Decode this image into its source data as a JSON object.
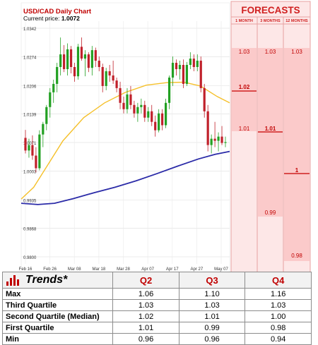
{
  "chart_data": [
    {
      "type": "candlestick",
      "title": "USD/CAD Daily Chart",
      "current_price_label": "Current price:",
      "current_price": "1.0072",
      "y_ticks": [
        "1.0342",
        "1.0274",
        "1.0206",
        "1.0139",
        "1.0071",
        "1.0003",
        "0.9935",
        "0.9868",
        "0.9800"
      ],
      "ylim": [
        0.98,
        1.0342
      ],
      "x_ticks": [
        "Feb 16",
        "Feb 26",
        "Mar 08",
        "Mar 18",
        "Mar 28",
        "Apr 07",
        "Apr 17",
        "Apr 27",
        "May 07"
      ],
      "candles": [
        [
          1.0082,
          1.0101,
          1.0045,
          1.0052
        ],
        [
          1.0052,
          1.008,
          1.0035,
          1.0065
        ],
        [
          1.0065,
          1.0088,
          1.003,
          1.004
        ],
        [
          1.004,
          1.006,
          1.0,
          1.001
        ],
        [
          1.001,
          1.01,
          1.0005,
          1.009
        ],
        [
          1.009,
          1.012,
          1.006,
          1.0115
        ],
        [
          1.0115,
          1.016,
          1.01,
          1.0155
        ],
        [
          1.0155,
          1.02,
          1.013,
          1.019
        ],
        [
          1.019,
          1.022,
          1.0165,
          1.021
        ],
        [
          1.021,
          1.026,
          1.019,
          1.025
        ],
        [
          1.025,
          1.032,
          1.023,
          1.028
        ],
        [
          1.028,
          1.0302,
          1.0238,
          1.0245
        ],
        [
          1.0245,
          1.0306,
          1.023,
          1.0292
        ],
        [
          1.0292,
          1.03,
          1.0235,
          1.025
        ],
        [
          1.025,
          1.026,
          1.0215,
          1.0228
        ],
        [
          1.0228,
          1.0305,
          1.022,
          1.0298
        ],
        [
          1.0298,
          1.032,
          1.0265,
          1.027
        ],
        [
          1.027,
          1.029,
          1.0228,
          1.028
        ],
        [
          1.028,
          1.0285,
          1.0238,
          1.0248
        ],
        [
          1.0248,
          1.03,
          1.023,
          1.029
        ],
        [
          1.029,
          1.0296,
          1.025,
          1.0265
        ],
        [
          1.0265,
          1.0275,
          1.024,
          1.025
        ],
        [
          1.025,
          1.0258,
          1.019,
          1.0205
        ],
        [
          1.0205,
          1.0248,
          1.0195,
          1.024
        ],
        [
          1.024,
          1.0255,
          1.0215,
          1.023
        ],
        [
          1.023,
          1.0265,
          1.021,
          1.0218
        ],
        [
          1.0218,
          1.0225,
          1.019,
          1.02
        ],
        [
          1.02,
          1.0215,
          1.015,
          1.0165
        ],
        [
          1.0165,
          1.018,
          1.014,
          1.015
        ],
        [
          1.015,
          1.02,
          1.014,
          1.0185
        ],
        [
          1.0185,
          1.0205,
          1.015,
          1.016
        ],
        [
          1.016,
          1.017,
          1.013,
          1.014
        ],
        [
          1.014,
          1.0165,
          1.012,
          1.0155
        ],
        [
          1.0155,
          1.0175,
          1.014,
          1.016
        ],
        [
          1.016,
          1.017,
          1.012,
          1.013
        ],
        [
          1.013,
          1.0155,
          1.012,
          1.0145
        ],
        [
          1.0145,
          1.016,
          1.011,
          1.012
        ],
        [
          1.012,
          1.0135,
          1.0085,
          1.01
        ],
        [
          1.01,
          1.015,
          1.0095,
          1.014
        ],
        [
          1.014,
          1.015,
          1.01,
          1.0112
        ],
        [
          1.0112,
          1.0175,
          1.0105,
          1.0165
        ],
        [
          1.0165,
          1.023,
          1.015,
          1.0225
        ],
        [
          1.0225,
          1.0275,
          1.0205,
          1.026
        ],
        [
          1.026,
          1.0268,
          1.023,
          1.0245
        ],
        [
          1.0245,
          1.0265,
          1.022,
          1.0255
        ],
        [
          1.0255,
          1.0268,
          1.02,
          1.021
        ],
        [
          1.021,
          1.0262,
          1.0205,
          1.0255
        ],
        [
          1.0255,
          1.0285,
          1.0245,
          1.027
        ],
        [
          1.027,
          1.028,
          1.024,
          1.025
        ],
        [
          1.025,
          1.028,
          1.024,
          1.0265
        ],
        [
          1.0265,
          1.0275,
          1.019,
          1.02
        ],
        [
          1.02,
          1.021,
          1.013,
          1.0145
        ],
        [
          1.0145,
          1.016,
          1.005,
          1.0065
        ],
        [
          1.0065,
          1.009,
          1.0045,
          1.008
        ],
        [
          1.008,
          1.012,
          1.006,
          1.0075
        ],
        [
          1.0075,
          1.0095,
          1.005,
          1.0085
        ],
        [
          1.0085,
          1.011,
          1.0065,
          1.007
        ],
        [
          1.007,
          1.0085,
          1.006,
          1.0072
        ]
      ],
      "series": [
        {
          "name": "",
          "color": "#f5c02a",
          "points": [
            [
              0,
              0.9937
            ],
            [
              0.06,
              0.9965
            ],
            [
              0.12,
              1.0012
            ],
            [
              0.2,
              1.0075
            ],
            [
              0.3,
              1.013
            ],
            [
              0.4,
              1.0165
            ],
            [
              0.5,
              1.019
            ],
            [
              0.6,
              1.0207
            ],
            [
              0.7,
              1.0213
            ],
            [
              0.78,
              1.0214
            ],
            [
              0.86,
              1.0205
            ],
            [
              0.94,
              1.018
            ],
            [
              1,
              1.0165
            ]
          ]
        },
        {
          "name": "",
          "color": "#2b2ba8",
          "points": [
            [
              0,
              0.9927
            ],
            [
              0.08,
              0.9924
            ],
            [
              0.16,
              0.9927
            ],
            [
              0.25,
              0.9938
            ],
            [
              0.35,
              0.9952
            ],
            [
              0.45,
              0.9965
            ],
            [
              0.55,
              0.998
            ],
            [
              0.65,
              0.9997
            ],
            [
              0.75,
              1.0015
            ],
            [
              0.85,
              1.0032
            ],
            [
              0.93,
              1.0043
            ],
            [
              1,
              1.005
            ]
          ]
        }
      ],
      "grid": true
    },
    {
      "type": "forecast-columns",
      "title": "FORECASTS",
      "columns": [
        "1 MONTH",
        "3 MONTHS",
        "12 MONTHS"
      ],
      "col1": {
        "max": "1.03",
        "median": "1.02",
        "min": "1.01",
        "median_value": 1.02
      },
      "col2": {
        "max": "1.03",
        "median": "1.01",
        "min": "0.99",
        "median_value": 1.01
      },
      "col3": {
        "max": "1.03",
        "median": "1",
        "min": "0.98",
        "median_value": 1.0
      }
    }
  ],
  "trends": {
    "title": "Trends*",
    "quarters": [
      "Q2",
      "Q3",
      "Q4"
    ],
    "rows": [
      {
        "label": "Max",
        "values": [
          "1.06",
          "1.10",
          "1.16"
        ]
      },
      {
        "label": "Third Quartile",
        "values": [
          "1.03",
          "1.03",
          "1.03"
        ]
      },
      {
        "label": "Second Quartile (Median)",
        "values": [
          "1.02",
          "1.01",
          "1.00"
        ]
      },
      {
        "label": "First Quartile",
        "values": [
          "1.01",
          "0.99",
          "0.98"
        ]
      },
      {
        "label": "Min",
        "values": [
          "0.96",
          "0.96",
          "0.94"
        ]
      }
    ]
  },
  "colors": {
    "up": "#22a022",
    "down": "#c0202a",
    "forecast_bg": "#fde7e7",
    "forecast_red": "#d02020",
    "table_red": "#c00000"
  }
}
